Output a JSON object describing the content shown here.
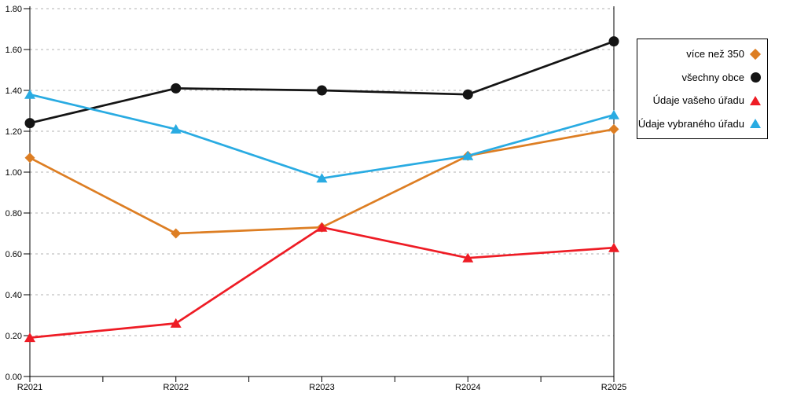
{
  "chart_data": {
    "type": "line",
    "title": "",
    "categories": [
      "R2021",
      "R2022",
      "R2023",
      "R2024",
      "R2025"
    ],
    "yticks": [
      "0.00",
      "0.20",
      "0.40",
      "0.60",
      "0.80",
      "1.00",
      "1.20",
      "1.40",
      "1.60",
      "1.80"
    ],
    "ylim": [
      0.0,
      1.8
    ],
    "grid": "horizontal-dashed",
    "legend_position": "right-box",
    "series": [
      {
        "name": "více než 350",
        "marker": "diamond",
        "color": "#dd7e23",
        "values": [
          1.07,
          0.7,
          0.73,
          1.08,
          1.21
        ]
      },
      {
        "name": "všechny obce",
        "marker": "circle",
        "color": "#141414",
        "values": [
          1.24,
          1.41,
          1.4,
          1.38,
          1.64
        ]
      },
      {
        "name": "Údaje vašeho úřadu",
        "marker": "triangle",
        "color": "#ee1c25",
        "values": [
          0.19,
          0.26,
          0.73,
          0.58,
          0.63
        ]
      },
      {
        "name": "Údaje vybraného úřadu",
        "marker": "triangle",
        "color": "#29abe2",
        "values": [
          1.38,
          1.21,
          0.97,
          1.08,
          1.28
        ]
      }
    ]
  },
  "colors": {
    "axis": "#000000",
    "grid": "#b0b0b0",
    "background": "#ffffff"
  }
}
